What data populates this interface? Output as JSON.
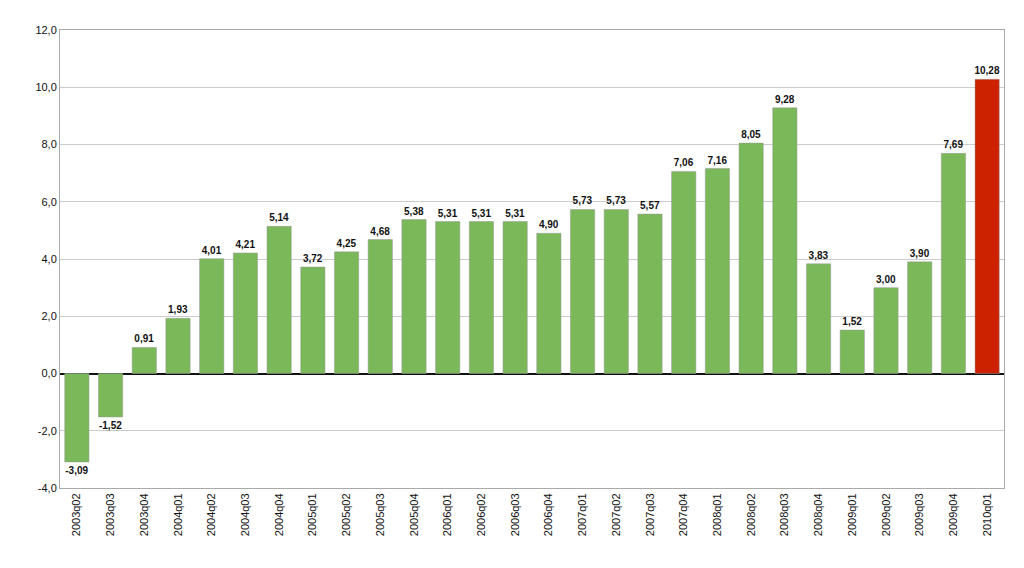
{
  "chart_data": {
    "type": "bar",
    "categories": [
      "2003q02",
      "2003q03",
      "2003q04",
      "2004q01",
      "2004q02",
      "2004q03",
      "2004q04",
      "2005q01",
      "2005q02",
      "2005q03",
      "2005q04",
      "2006q01",
      "2006q02",
      "2006q03",
      "2006q04",
      "2007q01",
      "2007q02",
      "2007q03",
      "2007q04",
      "2008q01",
      "2008q02",
      "2008q03",
      "2008q04",
      "2009q01",
      "2009q02",
      "2009q03",
      "2009q04",
      "2010q01"
    ],
    "values": [
      -3.09,
      -1.52,
      0.91,
      1.93,
      4.01,
      4.21,
      5.14,
      3.72,
      4.25,
      4.68,
      5.38,
      5.31,
      5.31,
      5.31,
      4.9,
      5.73,
      5.73,
      5.57,
      7.06,
      7.16,
      8.05,
      9.28,
      3.83,
      1.52,
      3.0,
      3.9,
      7.69,
      10.28
    ],
    "value_labels": [
      "-3,09",
      "-1,52",
      "0,91",
      "1,93",
      "4,01",
      "4,21",
      "5,14",
      "3,72",
      "4,25",
      "4,68",
      "5,38",
      "5,31",
      "5,31",
      "5,31",
      "4,90",
      "5,73",
      "5,73",
      "5,57",
      "7,06",
      "7,16",
      "8,05",
      "9,28",
      "3,83",
      "1,52",
      "3,00",
      "3,90",
      "7,69",
      "10,28"
    ],
    "data_labels": true,
    "colors": [
      "#7ab85a",
      "#7ab85a",
      "#7ab85a",
      "#7ab85a",
      "#7ab85a",
      "#7ab85a",
      "#7ab85a",
      "#7ab85a",
      "#7ab85a",
      "#7ab85a",
      "#7ab85a",
      "#7ab85a",
      "#7ab85a",
      "#7ab85a",
      "#7ab85a",
      "#7ab85a",
      "#7ab85a",
      "#7ab85a",
      "#7ab85a",
      "#7ab85a",
      "#7ab85a",
      "#7ab85a",
      "#7ab85a",
      "#7ab85a",
      "#7ab85a",
      "#7ab85a",
      "#7ab85a",
      "#cc2200"
    ],
    "ylim": [
      -4.0,
      12.0
    ],
    "yticks": [
      {
        "value": -4.0,
        "label": "-4,0"
      },
      {
        "value": -2.0,
        "label": "-2,0"
      },
      {
        "value": 0.0,
        "label": "0,0"
      },
      {
        "value": 2.0,
        "label": "2,0"
      },
      {
        "value": 4.0,
        "label": "4,0"
      },
      {
        "value": 6.0,
        "label": "6,0"
      },
      {
        "value": 8.0,
        "label": "8,0"
      },
      {
        "value": 10.0,
        "label": "10,0"
      },
      {
        "value": 12.0,
        "label": "12,0"
      }
    ],
    "grid": true
  }
}
